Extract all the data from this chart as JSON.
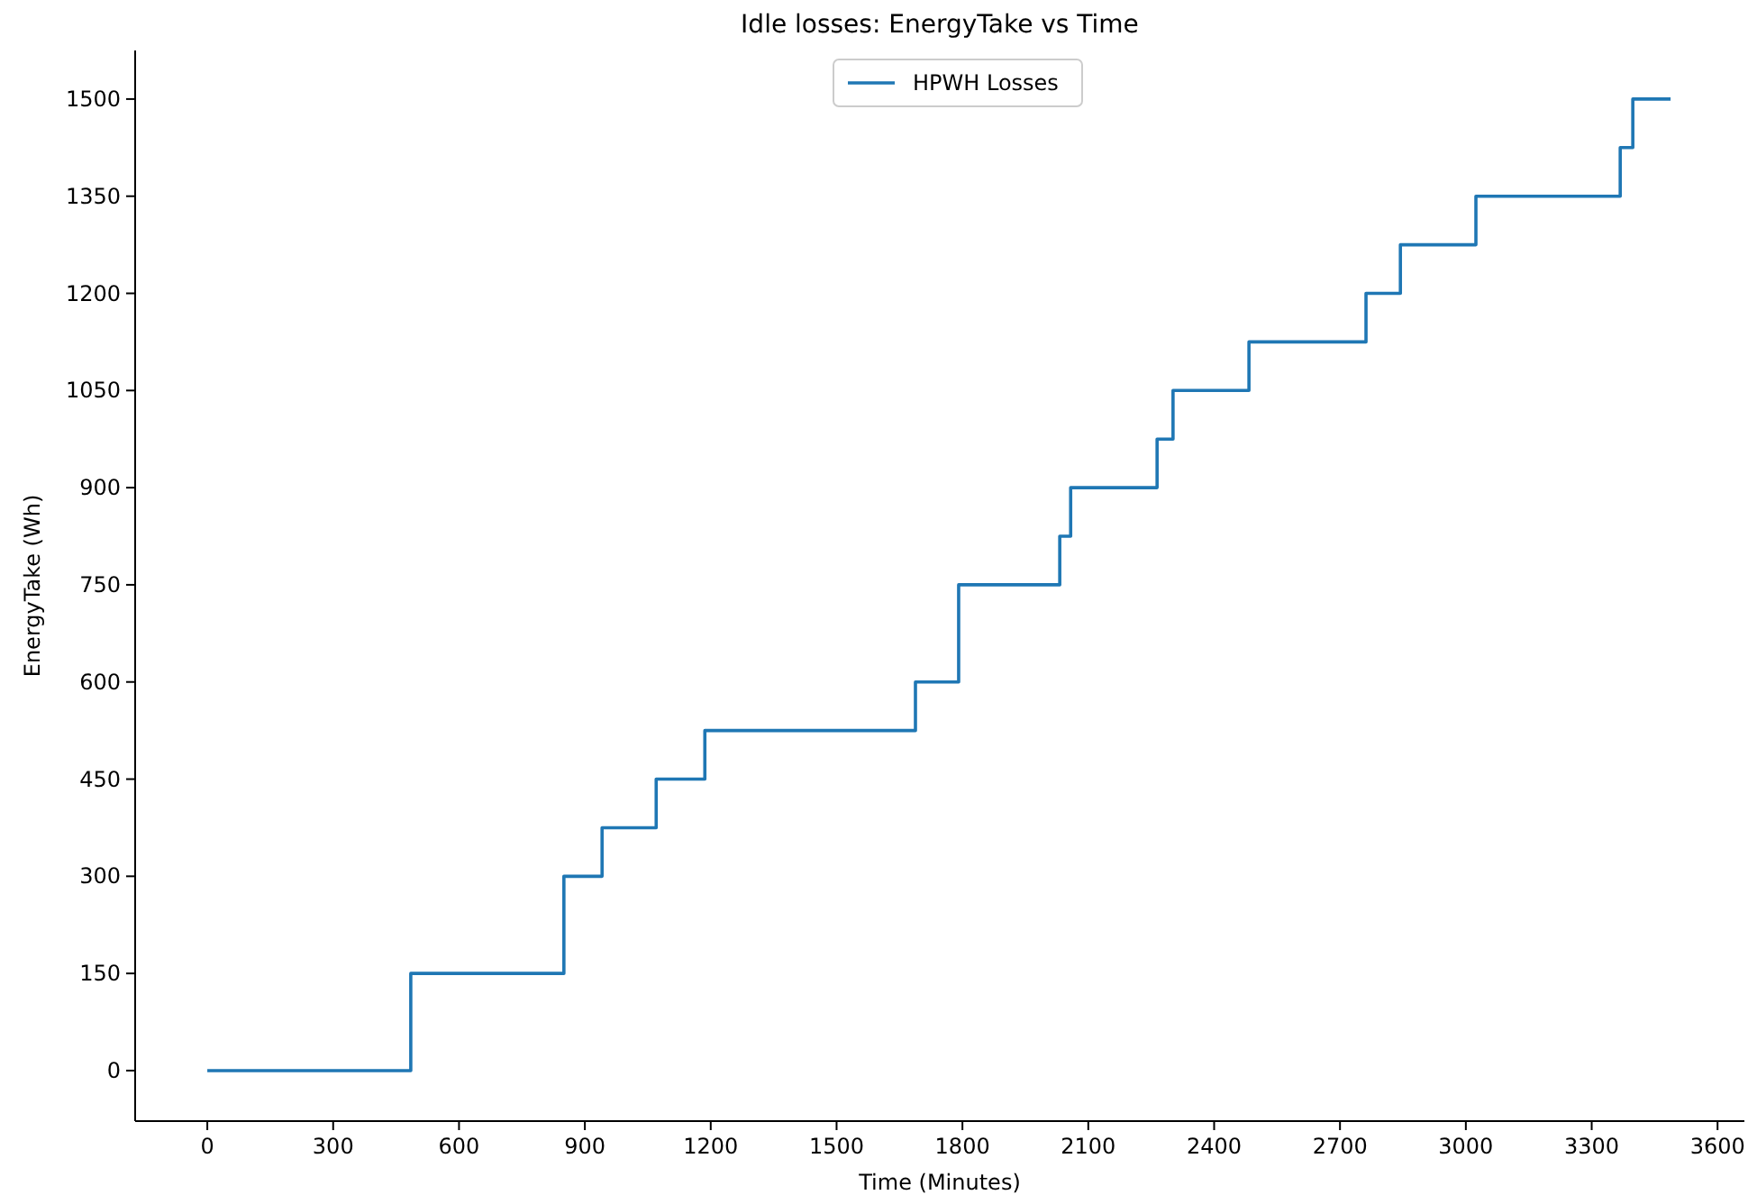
{
  "chart_data": {
    "type": "step",
    "title": "Idle losses: EnergyTake vs Time",
    "xlabel": "Time (Minutes)",
    "ylabel": "EnergyTake (Wh)",
    "x": [
      0,
      485,
      850,
      941,
      1070,
      1186,
      1688,
      1791,
      2032,
      2058,
      2264,
      2302,
      2483,
      2762,
      2844,
      3024,
      3368,
      3398,
      3488
    ],
    "series": [
      {
        "name": "HPWH Losses",
        "color": "#1f77b4",
        "values": [
          0,
          150,
          300,
          375,
          450,
          525,
          600,
          750,
          825,
          900,
          975,
          1050,
          1125,
          1200,
          1275,
          1350,
          1425,
          1500,
          1500
        ]
      }
    ],
    "xlim": [
      -172,
      3664
    ],
    "ylim": [
      -78,
      1575
    ],
    "xticks": [
      0,
      300,
      600,
      900,
      1200,
      1500,
      1800,
      2100,
      2400,
      2700,
      3000,
      3300,
      3600
    ],
    "yticks": [
      0,
      150,
      300,
      450,
      600,
      750,
      900,
      1050,
      1200,
      1350,
      1500
    ],
    "legend": "top",
    "grid": false
  }
}
